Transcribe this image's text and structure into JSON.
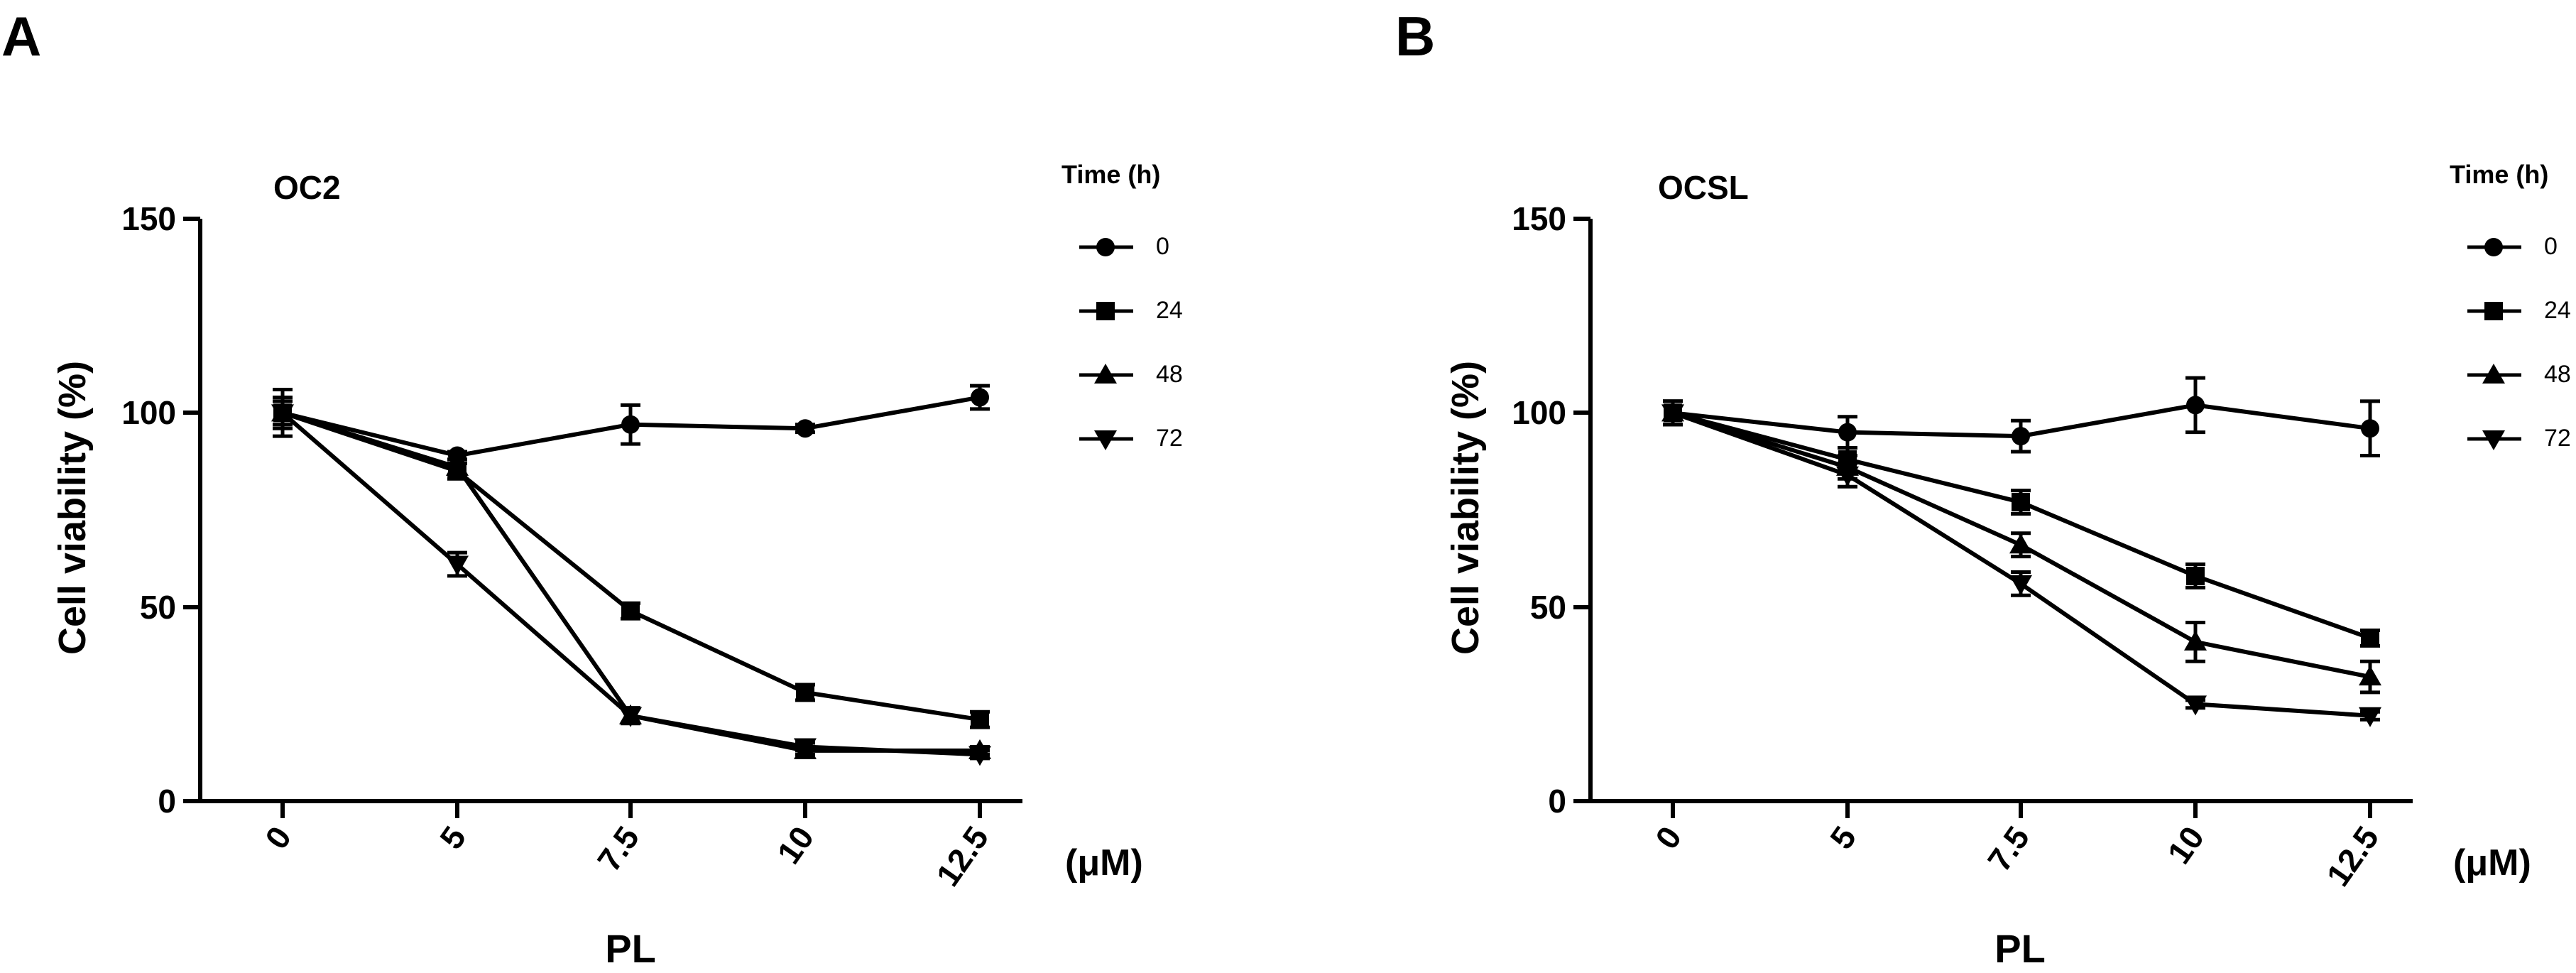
{
  "chart_data": [
    {
      "type": "line",
      "panel_label": "A",
      "title": "OC2",
      "xlabel": "PL",
      "ylabel": "Cell viability (%)",
      "x_unit": "(μM)",
      "categories": [
        "0",
        "5",
        "7.5",
        "10",
        "12.5"
      ],
      "yticks": [
        0,
        50,
        100,
        150
      ],
      "ylim": [
        0,
        150
      ],
      "legend_title": "Time (h)",
      "legend_position": "top-right",
      "series": [
        {
          "name": "0",
          "marker": "circle",
          "values": [
            100,
            89,
            97,
            96,
            104
          ],
          "errors": [
            6,
            1,
            5,
            1,
            3
          ]
        },
        {
          "name": "24",
          "marker": "square",
          "values": [
            100,
            85,
            49,
            28,
            21
          ],
          "errors": [
            4,
            2,
            2,
            2,
            2
          ]
        },
        {
          "name": "48",
          "marker": "triangle-up",
          "values": [
            100,
            86,
            22,
            13,
            13
          ],
          "errors": [
            3,
            2,
            2,
            1,
            1
          ]
        },
        {
          "name": "72",
          "marker": "triangle-down",
          "values": [
            100,
            61,
            22,
            14,
            12
          ],
          "errors": [
            3,
            3,
            2,
            1,
            1
          ]
        }
      ]
    },
    {
      "type": "line",
      "panel_label": "B",
      "title": "OCSL",
      "xlabel": "PL",
      "ylabel": "Cell viability (%)",
      "x_unit": "(μM)",
      "categories": [
        "0",
        "5",
        "7.5",
        "10",
        "12.5"
      ],
      "yticks": [
        0,
        50,
        100,
        150
      ],
      "ylim": [
        0,
        150
      ],
      "legend_title": "Time (h)",
      "legend_position": "top-right",
      "series": [
        {
          "name": "0",
          "marker": "circle",
          "values": [
            100,
            95,
            94,
            102,
            96
          ],
          "errors": [
            3,
            4,
            4,
            7,
            7
          ]
        },
        {
          "name": "24",
          "marker": "square",
          "values": [
            100,
            88,
            77,
            58,
            42
          ],
          "errors": [
            3,
            3,
            3,
            3,
            2
          ]
        },
        {
          "name": "48",
          "marker": "triangle-up",
          "values": [
            100,
            86,
            66,
            41,
            32
          ],
          "errors": [
            3,
            3,
            3,
            5,
            4
          ]
        },
        {
          "name": "72",
          "marker": "triangle-down",
          "values": [
            100,
            84,
            56,
            25,
            22
          ],
          "errors": [
            3,
            3,
            3,
            1,
            1
          ]
        }
      ]
    }
  ]
}
